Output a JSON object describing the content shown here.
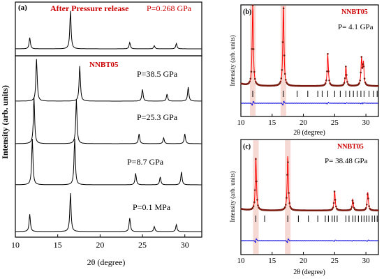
{
  "figure": {
    "panel_a": {
      "label": "(a)",
      "after_release_title": "After Pressure release",
      "after_release_pressure": "P=0.268 GPa",
      "sample_name": "NNBT05",
      "y_axis_label": "Intensity (arb. units)",
      "x_axis_label": "2θ (degree)",
      "x_ticks": [
        "10",
        "15",
        "20",
        "25",
        "30"
      ],
      "traces": [
        {
          "pressure_label": "P=38.5 GPa"
        },
        {
          "pressure_label": "P=25.3 GPa"
        },
        {
          "pressure_label": "P=8.7 GPa"
        },
        {
          "pressure_label": "P=0.1 MPa"
        }
      ]
    },
    "panel_b": {
      "label": "(b)",
      "sample_name": "NNBT05",
      "pressure_label": "P= 4.1 GPa",
      "y_axis_label": "Intensity (arb. units)",
      "x_axis_label": "2θ (degree)",
      "x_ticks": [
        "10",
        "15",
        "20",
        "25",
        "30"
      ]
    },
    "panel_c": {
      "label": "(c)",
      "sample_name": "NNBT05",
      "pressure_label": "P= 38.48 GPa",
      "y_axis_label": "Intensity (arb. units)",
      "x_axis_label": "2θ (degree)",
      "x_ticks": [
        "10",
        "15",
        "20",
        "25",
        "30"
      ]
    }
  },
  "colors": {
    "axis": "#000000",
    "trace": "#000000",
    "observed": "#7a1b10",
    "calculated": "#ff0000",
    "difference": "#0000dd",
    "highlight": "#f2c9c0",
    "label_red": "#cc0000"
  },
  "chart_data": [
    {
      "type": "line",
      "panel": "a",
      "xlim": [
        10,
        32
      ],
      "series": [
        {
          "peaks": [
            [
              11.7,
              0.25
            ],
            [
              16.5,
              0.85
            ],
            [
              23.5,
              0.14
            ],
            [
              26.4,
              0.07
            ],
            [
              29.0,
              0.12
            ]
          ]
        },
        {
          "peaks": [
            [
              12.5,
              0.9
            ],
            [
              17.6,
              0.75
            ],
            [
              25.0,
              0.25
            ],
            [
              27.9,
              0.15
            ],
            [
              30.4,
              0.3
            ]
          ]
        },
        {
          "peaks": [
            [
              12.2,
              0.95
            ],
            [
              17.2,
              0.9
            ],
            [
              24.6,
              0.2
            ],
            [
              27.5,
              0.12
            ],
            [
              30.0,
              0.2
            ]
          ]
        },
        {
          "peaks": [
            [
              12.0,
              1.0
            ],
            [
              17.0,
              1.0
            ],
            [
              24.2,
              0.25
            ],
            [
              27.1,
              0.17
            ],
            [
              29.6,
              0.28
            ]
          ]
        },
        {
          "peaks": [
            [
              11.7,
              0.45
            ],
            [
              16.5,
              1.0
            ],
            [
              23.5,
              0.35
            ],
            [
              26.4,
              0.13
            ],
            [
              29.0,
              0.18
            ]
          ]
        }
      ]
    },
    {
      "type": "scatter",
      "panel": "b",
      "xlim": [
        10,
        32
      ],
      "peaks": [
        [
          11.9,
          1.0
        ],
        [
          16.8,
          1.0
        ],
        [
          23.9,
          0.4
        ],
        [
          26.8,
          0.25
        ],
        [
          29.3,
          0.33
        ],
        [
          29.6,
          0.28
        ]
      ],
      "reflection_ticks": [
        11.9,
        16.8,
        19.0,
        20.7,
        22.3,
        23.0,
        23.9,
        25.0,
        25.9,
        26.8,
        27.4,
        28.0,
        28.6,
        29.2,
        29.7,
        30.5,
        31.2,
        31.8
      ]
    },
    {
      "type": "scatter",
      "panel": "c",
      "xlim": [
        10,
        32
      ],
      "peaks": [
        [
          12.4,
          0.95
        ],
        [
          17.5,
          0.98
        ],
        [
          25.0,
          0.35
        ],
        [
          27.9,
          0.2
        ],
        [
          30.3,
          0.33
        ]
      ],
      "reflection_ticks": [
        12.4,
        13.8,
        17.5,
        19.2,
        20.8,
        22.3,
        23.5,
        24.0,
        24.6,
        25.0,
        25.4,
        26.8,
        27.3,
        27.9,
        28.3,
        28.8,
        29.3,
        29.7,
        30.1,
        30.5,
        31.0,
        31.4,
        31.8
      ]
    }
  ]
}
